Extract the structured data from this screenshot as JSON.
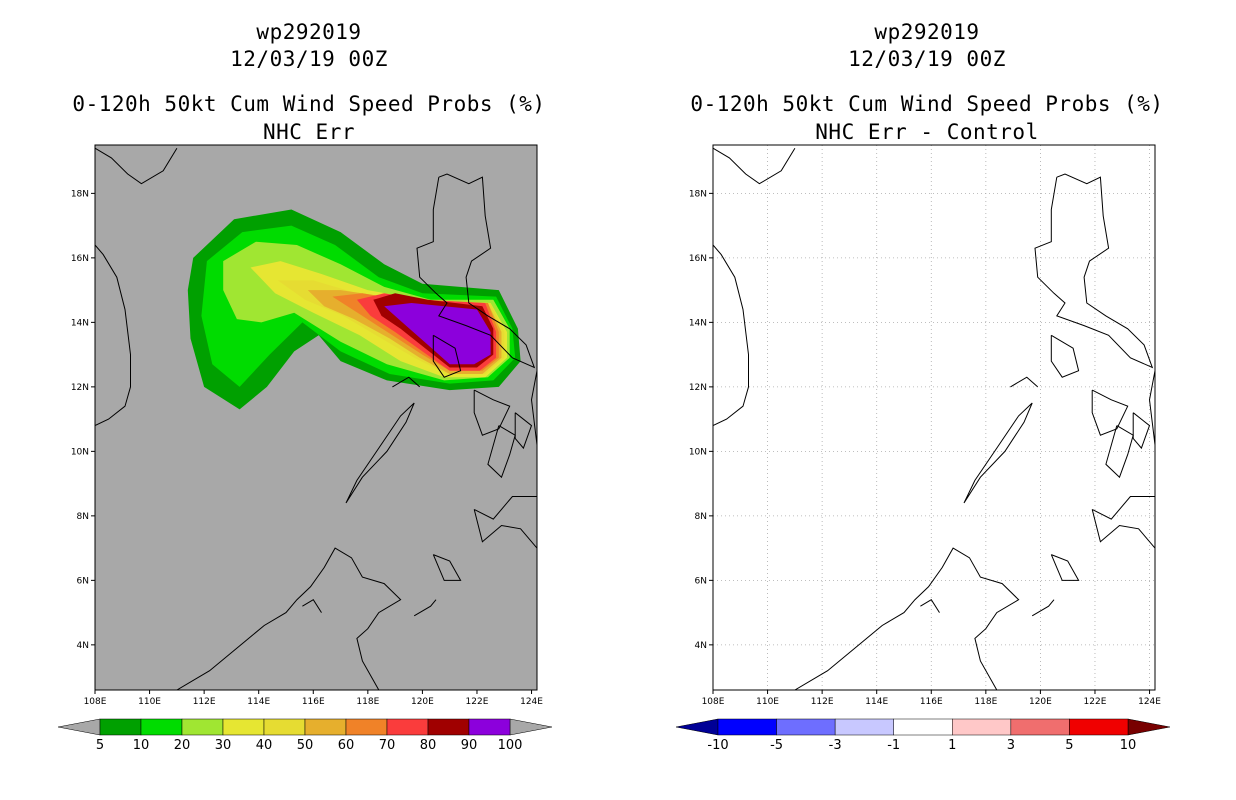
{
  "panels": [
    {
      "id": "left",
      "title": {
        "storm_id": "wp292019",
        "datetime": "12/03/19 00Z",
        "product": "0-120h 50kt Cum Wind Speed Probs (%)",
        "subtitle": "NHC Err"
      },
      "map": {
        "background": "#a8a8a8",
        "gridlines": false
      }
    },
    {
      "id": "right",
      "title": {
        "storm_id": "wp292019",
        "datetime": "12/03/19 00Z",
        "product": "0-120h 50kt Cum Wind Speed Probs (%)",
        "subtitle": "NHC Err - Control"
      },
      "map": {
        "background": "#ffffff",
        "gridlines": true
      }
    }
  ],
  "chart_data": [
    {
      "type": "filled-contour-map",
      "title": "0-120h 50kt Cum Wind Speed Probs (%) — NHC Err",
      "xlim": [
        108,
        124.2
      ],
      "ylim": [
        2.6,
        19.5
      ],
      "x_ticks": [
        108,
        110,
        112,
        114,
        116,
        118,
        120,
        122,
        124
      ],
      "x_tick_labels": [
        "108E",
        "110E",
        "112E",
        "114E",
        "116E",
        "118E",
        "120E",
        "122E",
        "124E"
      ],
      "y_ticks": [
        4,
        6,
        8,
        10,
        12,
        14,
        16,
        18
      ],
      "y_tick_labels": [
        "4N",
        "6N",
        "8N",
        "10N",
        "12N",
        "14N",
        "16N",
        "18N"
      ],
      "colorbar": {
        "levels": [
          5,
          10,
          20,
          30,
          40,
          50,
          60,
          70,
          80,
          90,
          100
        ],
        "labels": [
          "5",
          "10",
          "20",
          "30",
          "40",
          "50",
          "60",
          "70",
          "80",
          "90",
          "100"
        ],
        "colors": [
          "#00a000",
          "#00dc00",
          "#a0e632",
          "#e6e632",
          "#e6dc32",
          "#e6af2d",
          "#f08228",
          "#fa3c3c",
          "#a00000",
          "#8c00dc"
        ],
        "end_colors": [
          "#a8a8a8",
          "#a8a8a8"
        ]
      }
    },
    {
      "type": "filled-contour-map",
      "title": "0-120h 50kt Cum Wind Speed Probs (%) — NHC Err - Control",
      "xlim": [
        108,
        124.2
      ],
      "ylim": [
        2.6,
        19.5
      ],
      "x_ticks": [
        108,
        110,
        112,
        114,
        116,
        118,
        120,
        122,
        124
      ],
      "x_tick_labels": [
        "108E",
        "110E",
        "112E",
        "114E",
        "116E",
        "118E",
        "120E",
        "122E",
        "124E"
      ],
      "y_ticks": [
        4,
        6,
        8,
        10,
        12,
        14,
        16,
        18
      ],
      "y_tick_labels": [
        "4N",
        "6N",
        "8N",
        "10N",
        "12N",
        "14N",
        "16N",
        "18N"
      ],
      "colorbar": {
        "levels": [
          -10,
          -5,
          -3,
          -1,
          1,
          3,
          5,
          10
        ],
        "labels": [
          "-10",
          "-5",
          "-3",
          "-1",
          "1",
          "3",
          "5",
          "10"
        ],
        "colors": [
          "#0000ff",
          "#6e6eff",
          "#c8c8ff",
          "#ffffff",
          "#ffc8c8",
          "#f06e6e",
          "#f00000"
        ],
        "end_colors": [
          "#000096",
          "#780000"
        ]
      }
    }
  ]
}
